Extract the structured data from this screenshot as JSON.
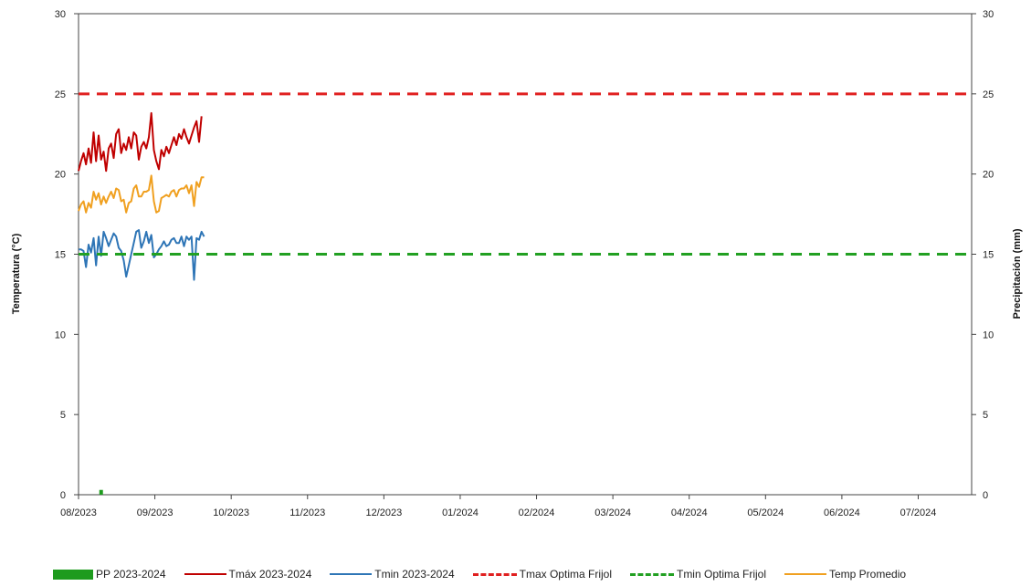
{
  "chart_data": {
    "type": "line",
    "ylabel_left": "Temperatura (°C)",
    "ylabel_right": "Precipitación (mm)",
    "ylim": [
      0,
      30
    ],
    "yticks": [
      "0",
      "5",
      "10",
      "15",
      "20",
      "25",
      "30"
    ],
    "y2lim": [
      0,
      30
    ],
    "y2ticks": [
      "0",
      "5",
      "10",
      "15",
      "20",
      "25",
      "30"
    ],
    "xlim_months": [
      0,
      11.7
    ],
    "categories": [
      "08/2023",
      "09/2023",
      "10/2023",
      "11/2023",
      "12/2023",
      "01/2024",
      "02/2024",
      "03/2024",
      "04/2024",
      "05/2024",
      "06/2024",
      "07/2024"
    ],
    "grid": false,
    "legend_position": "bottom",
    "series": [
      {
        "name": "PP 2023-2024",
        "kind": "bar",
        "axis": "right",
        "color": "#1e9b1e",
        "points": [
          [
            "2023-08-10",
            0.3
          ]
        ]
      },
      {
        "name": "Tmáx 2023-2024",
        "kind": "line",
        "color": "#c00000",
        "x": [
          "2023-08-01",
          "2023-08-02",
          "2023-08-03",
          "2023-08-04",
          "2023-08-05",
          "2023-08-06",
          "2023-08-07",
          "2023-08-08",
          "2023-08-09",
          "2023-08-10",
          "2023-08-11",
          "2023-08-12",
          "2023-08-13",
          "2023-08-14",
          "2023-08-15",
          "2023-08-16",
          "2023-08-17",
          "2023-08-18",
          "2023-08-19",
          "2023-08-20",
          "2023-08-21",
          "2023-08-22",
          "2023-08-23",
          "2023-08-24",
          "2023-08-25",
          "2023-08-26",
          "2023-08-27",
          "2023-08-28",
          "2023-08-29",
          "2023-08-30",
          "2023-08-31",
          "2023-09-01",
          "2023-09-02",
          "2023-09-03",
          "2023-09-04",
          "2023-09-05",
          "2023-09-06",
          "2023-09-07",
          "2023-09-08",
          "2023-09-09",
          "2023-09-10",
          "2023-09-11",
          "2023-09-12",
          "2023-09-13",
          "2023-09-14",
          "2023-09-15",
          "2023-09-16",
          "2023-09-17",
          "2023-09-18",
          "2023-09-19",
          "2023-09-20",
          "2023-09-21"
        ],
        "values": [
          20.2,
          20.8,
          21.3,
          20.6,
          21.6,
          20.7,
          22.6,
          20.8,
          22.4,
          20.9,
          21.4,
          20.2,
          21.6,
          21.9,
          21.0,
          22.5,
          22.8,
          21.3,
          21.9,
          21.5,
          22.3,
          21.6,
          22.6,
          22.4,
          20.9,
          21.7,
          22.0,
          21.6,
          22.3,
          23.8,
          21.5,
          20.8,
          20.3,
          21.5,
          21.1,
          21.7,
          21.3,
          21.8,
          22.3,
          21.8,
          22.5,
          22.2,
          22.8,
          22.3,
          21.9,
          22.4,
          22.9,
          23.3,
          22.0,
          23.6,
          null,
          null
        ]
      },
      {
        "name": "Tmin 2023-2024",
        "kind": "line",
        "color": "#2e75b6",
        "x": [
          "2023-08-01",
          "2023-08-02",
          "2023-08-03",
          "2023-08-04",
          "2023-08-05",
          "2023-08-06",
          "2023-08-07",
          "2023-08-08",
          "2023-08-09",
          "2023-08-10",
          "2023-08-11",
          "2023-08-12",
          "2023-08-13",
          "2023-08-14",
          "2023-08-15",
          "2023-08-16",
          "2023-08-17",
          "2023-08-18",
          "2023-08-19",
          "2023-08-20",
          "2023-08-21",
          "2023-08-22",
          "2023-08-23",
          "2023-08-24",
          "2023-08-25",
          "2023-08-26",
          "2023-08-27",
          "2023-08-28",
          "2023-08-29",
          "2023-08-30",
          "2023-08-31",
          "2023-09-01",
          "2023-09-02",
          "2023-09-03",
          "2023-09-04",
          "2023-09-05",
          "2023-09-06",
          "2023-09-07",
          "2023-09-08",
          "2023-09-09",
          "2023-09-10",
          "2023-09-11",
          "2023-09-12",
          "2023-09-13",
          "2023-09-14",
          "2023-09-15",
          "2023-09-16",
          "2023-09-17",
          "2023-09-18",
          "2023-09-19",
          "2023-09-20",
          "2023-09-21"
        ],
        "values": [
          15.3,
          15.3,
          15.2,
          14.2,
          15.6,
          15.1,
          16.0,
          14.3,
          16.1,
          14.9,
          16.4,
          16.0,
          15.5,
          15.9,
          16.3,
          16.1,
          15.4,
          15.2,
          14.6,
          13.6,
          14.3,
          15.0,
          15.7,
          16.4,
          16.5,
          15.4,
          15.8,
          16.4,
          15.7,
          16.2,
          14.8,
          15.0,
          15.3,
          15.5,
          15.8,
          15.5,
          15.6,
          15.9,
          16.0,
          15.7,
          15.7,
          16.1,
          15.5,
          16.1,
          15.9,
          16.1,
          13.4,
          16.0,
          15.9,
          16.4,
          16.1,
          null
        ]
      },
      {
        "name": "Tmax Optima Frijol",
        "kind": "dashed",
        "color": "#e02020",
        "value": 25
      },
      {
        "name": "Tmin Optima Frijol",
        "kind": "dashed",
        "color": "#22a022",
        "value": 15
      },
      {
        "name": "Temp Promedio",
        "kind": "line",
        "color": "#f0a020",
        "x": [
          "2023-08-01",
          "2023-08-02",
          "2023-08-03",
          "2023-08-04",
          "2023-08-05",
          "2023-08-06",
          "2023-08-07",
          "2023-08-08",
          "2023-08-09",
          "2023-08-10",
          "2023-08-11",
          "2023-08-12",
          "2023-08-13",
          "2023-08-14",
          "2023-08-15",
          "2023-08-16",
          "2023-08-17",
          "2023-08-18",
          "2023-08-19",
          "2023-08-20",
          "2023-08-21",
          "2023-08-22",
          "2023-08-23",
          "2023-08-24",
          "2023-08-25",
          "2023-08-26",
          "2023-08-27",
          "2023-08-28",
          "2023-08-29",
          "2023-08-30",
          "2023-08-31",
          "2023-09-01",
          "2023-09-02",
          "2023-09-03",
          "2023-09-04",
          "2023-09-05",
          "2023-09-06",
          "2023-09-07",
          "2023-09-08",
          "2023-09-09",
          "2023-09-10",
          "2023-09-11",
          "2023-09-12",
          "2023-09-13",
          "2023-09-14",
          "2023-09-15",
          "2023-09-16",
          "2023-09-17",
          "2023-09-18",
          "2023-09-19",
          "2023-09-20",
          "2023-09-21"
        ],
        "values": [
          17.7,
          18.1,
          18.3,
          17.6,
          18.2,
          17.9,
          18.9,
          18.4,
          18.8,
          18.1,
          18.6,
          18.2,
          18.6,
          18.9,
          18.5,
          19.1,
          19.0,
          18.3,
          18.4,
          17.6,
          18.2,
          18.3,
          19.1,
          19.3,
          18.6,
          18.6,
          18.9,
          18.9,
          19.0,
          19.9,
          18.3,
          17.6,
          17.7,
          18.5,
          18.6,
          18.7,
          18.6,
          18.9,
          19.0,
          18.6,
          19.0,
          19.1,
          19.1,
          19.3,
          18.8,
          19.3,
          18.0,
          19.5,
          19.2,
          19.8,
          19.8,
          null
        ]
      }
    ]
  }
}
